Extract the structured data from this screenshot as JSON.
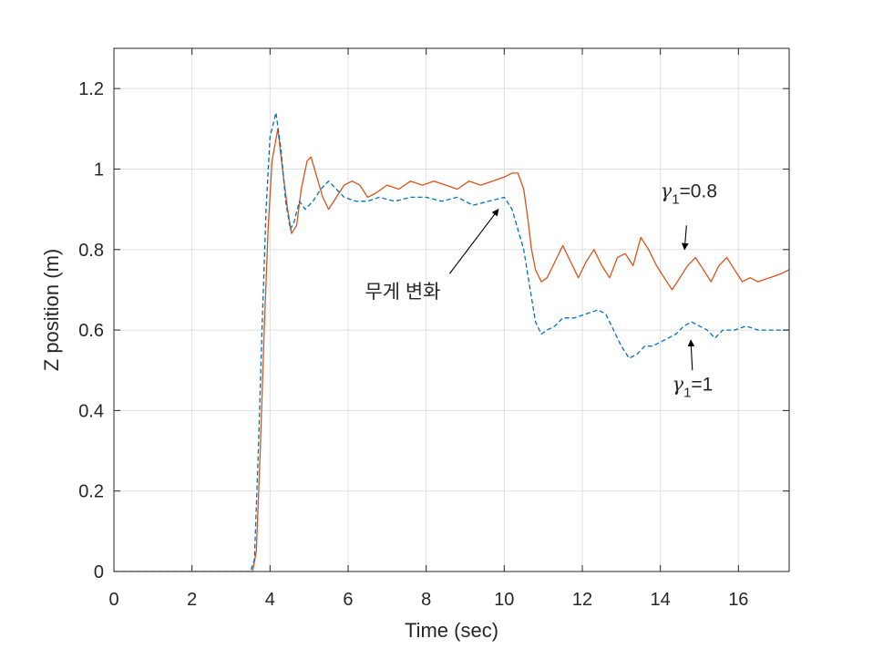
{
  "chart_data": {
    "type": "line",
    "xlabel": "Time (sec)",
    "ylabel": "Z position (m)",
    "xlim": [
      0,
      17.3
    ],
    "ylim": [
      0,
      1.3
    ],
    "xticks": [
      0,
      2,
      4,
      6,
      8,
      10,
      12,
      14,
      16
    ],
    "yticks": [
      0,
      0.2,
      0.4,
      0.6,
      0.8,
      1.0,
      1.2
    ],
    "xtick_labels": [
      "0",
      "2",
      "4",
      "6",
      "8",
      "10",
      "12",
      "14",
      "16"
    ],
    "ytick_labels": [
      "0",
      "0.2",
      "0.4",
      "0.6",
      "0.8",
      "1",
      "1.2"
    ],
    "grid": true,
    "series": [
      {
        "style": "solid",
        "color": "#D95319",
        "x": [
          0,
          3.55,
          3.65,
          3.75,
          3.85,
          3.95,
          4.05,
          4.2,
          4.32,
          4.45,
          4.55,
          4.68,
          4.8,
          4.95,
          5.05,
          5.2,
          5.35,
          5.5,
          5.7,
          5.9,
          6.1,
          6.3,
          6.5,
          6.7,
          7.0,
          7.3,
          7.6,
          7.9,
          8.2,
          8.5,
          8.8,
          9.1,
          9.4,
          9.7,
          10.0,
          10.2,
          10.35,
          10.5,
          10.6,
          10.7,
          10.8,
          10.95,
          11.1,
          11.3,
          11.5,
          11.7,
          11.9,
          12.1,
          12.3,
          12.5,
          12.7,
          12.9,
          13.1,
          13.3,
          13.5,
          13.7,
          13.9,
          14.1,
          14.3,
          14.5,
          14.7,
          14.9,
          15.1,
          15.3,
          15.5,
          15.7,
          15.9,
          16.1,
          16.3,
          16.5,
          16.8,
          17.1,
          17.3
        ],
        "y": [
          0,
          0,
          0.05,
          0.3,
          0.6,
          0.85,
          1.02,
          1.1,
          1.0,
          0.9,
          0.84,
          0.86,
          0.95,
          1.02,
          1.03,
          0.98,
          0.93,
          0.9,
          0.93,
          0.96,
          0.97,
          0.96,
          0.93,
          0.94,
          0.96,
          0.95,
          0.97,
          0.96,
          0.97,
          0.96,
          0.95,
          0.97,
          0.96,
          0.97,
          0.98,
          0.99,
          0.99,
          0.95,
          0.88,
          0.8,
          0.75,
          0.72,
          0.73,
          0.77,
          0.81,
          0.77,
          0.73,
          0.77,
          0.8,
          0.76,
          0.73,
          0.78,
          0.79,
          0.76,
          0.83,
          0.8,
          0.76,
          0.73,
          0.7,
          0.73,
          0.76,
          0.78,
          0.75,
          0.72,
          0.76,
          0.78,
          0.75,
          0.72,
          0.73,
          0.72,
          0.73,
          0.74,
          0.75
        ]
      },
      {
        "style": "dashed",
        "color": "#0072BD",
        "x": [
          0,
          3.5,
          3.6,
          3.7,
          3.8,
          3.9,
          4.0,
          4.15,
          4.28,
          4.4,
          4.52,
          4.62,
          4.75,
          4.9,
          5.1,
          5.3,
          5.5,
          5.7,
          5.9,
          6.2,
          6.5,
          6.8,
          7.2,
          7.6,
          8.0,
          8.4,
          8.8,
          9.2,
          9.6,
          10.0,
          10.2,
          10.35,
          10.5,
          10.6,
          10.7,
          10.8,
          10.95,
          11.1,
          11.3,
          11.5,
          11.8,
          12.1,
          12.4,
          12.6,
          12.8,
          13.0,
          13.2,
          13.4,
          13.6,
          13.8,
          14.0,
          14.2,
          14.4,
          14.6,
          14.8,
          15.0,
          15.2,
          15.4,
          15.6,
          15.9,
          16.2,
          16.5,
          16.8,
          17.1,
          17.3
        ],
        "y": [
          0,
          0,
          0.03,
          0.3,
          0.62,
          0.9,
          1.08,
          1.14,
          1.05,
          0.92,
          0.85,
          0.87,
          0.92,
          0.9,
          0.92,
          0.95,
          0.97,
          0.95,
          0.93,
          0.92,
          0.92,
          0.93,
          0.92,
          0.93,
          0.93,
          0.92,
          0.93,
          0.91,
          0.92,
          0.93,
          0.9,
          0.85,
          0.8,
          0.74,
          0.68,
          0.62,
          0.59,
          0.6,
          0.61,
          0.63,
          0.63,
          0.64,
          0.65,
          0.64,
          0.6,
          0.56,
          0.53,
          0.54,
          0.56,
          0.56,
          0.57,
          0.58,
          0.59,
          0.61,
          0.62,
          0.61,
          0.6,
          0.58,
          0.6,
          0.6,
          0.61,
          0.6,
          0.6,
          0.6,
          0.6
        ]
      }
    ],
    "annotations": [
      {
        "id": "weight",
        "text": "무게 변화",
        "text_pos": [
          7.4,
          0.68
        ],
        "arrow_from": [
          8.6,
          0.74
        ],
        "arrow_to": [
          9.85,
          0.9
        ]
      },
      {
        "id": "g08",
        "sym": "γ",
        "sub": "1",
        "rest": "=0.8",
        "text_pos": [
          14.0,
          0.93
        ],
        "arrow_from": [
          14.67,
          0.86
        ],
        "arrow_to": [
          14.62,
          0.8
        ]
      },
      {
        "id": "g1",
        "sym": "γ",
        "sub": "1",
        "rest": "=1",
        "text_pos": [
          14.3,
          0.45
        ],
        "arrow_from": [
          14.82,
          0.5
        ],
        "arrow_to": [
          14.78,
          0.575
        ]
      }
    ]
  }
}
